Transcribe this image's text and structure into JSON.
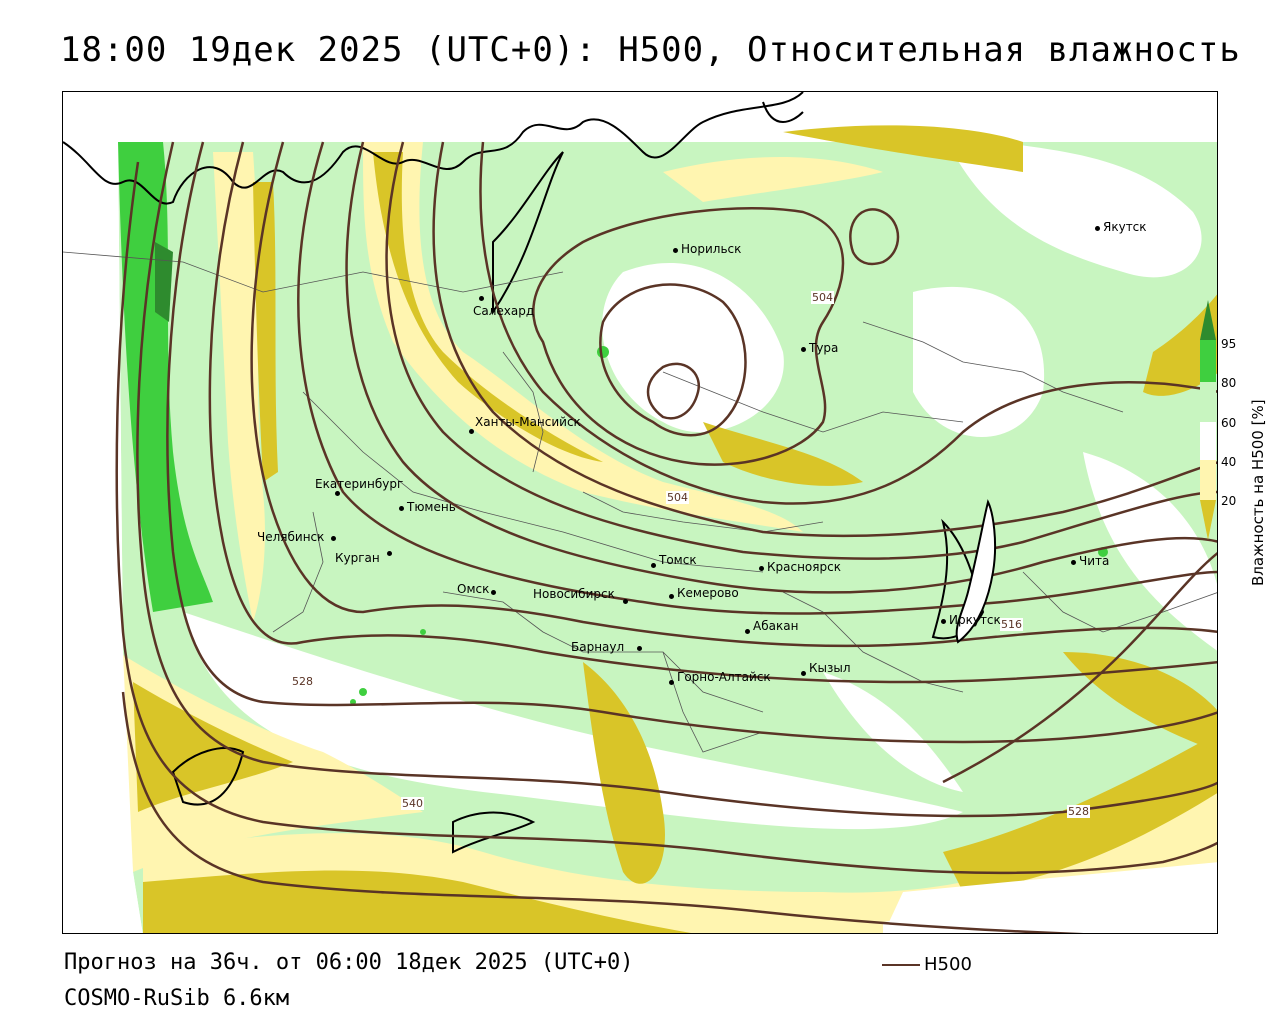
{
  "title": "18:00 19дек 2025 (UTC+0): H500, Относительная влажность",
  "footer": {
    "forecast": "Прогноз на 36ч. от 06:00 18дек 2025 (UTC+0)",
    "model": "COSMO-RuSib 6.6км",
    "legend_label": "H500"
  },
  "colorbar": {
    "title": "Влажность на H500 [%]",
    "ticks": [
      "95",
      "80",
      "60",
      "40",
      "20"
    ],
    "colors": {
      "above_95": "#2e8b2e",
      "80_95": "#3fcf3f",
      "60_80": "#c8f5c0",
      "40_60": "#ffffff",
      "20_40": "#fff5b0",
      "below_20": "#d9c528"
    }
  },
  "contour_color": "#5a3426",
  "contour_labels": [
    "504",
    "504",
    "528",
    "540",
    "528",
    "516"
  ],
  "cities": [
    {
      "name": "Норильск"
    },
    {
      "name": "Якутск"
    },
    {
      "name": "Салехард"
    },
    {
      "name": "Тура"
    },
    {
      "name": "Ханты-Мансийск"
    },
    {
      "name": "Екатеринбург"
    },
    {
      "name": "Тюмень"
    },
    {
      "name": "Челябинск"
    },
    {
      "name": "Курган"
    },
    {
      "name": "Томск"
    },
    {
      "name": "Красноярск"
    },
    {
      "name": "Омск"
    },
    {
      "name": "Новосибирск"
    },
    {
      "name": "Кемерово"
    },
    {
      "name": "Абакан"
    },
    {
      "name": "Барнаул"
    },
    {
      "name": "Иркутск"
    },
    {
      "name": "Чита"
    },
    {
      "name": "Кызыл"
    },
    {
      "name": "Горно-Алтайск"
    }
  ]
}
